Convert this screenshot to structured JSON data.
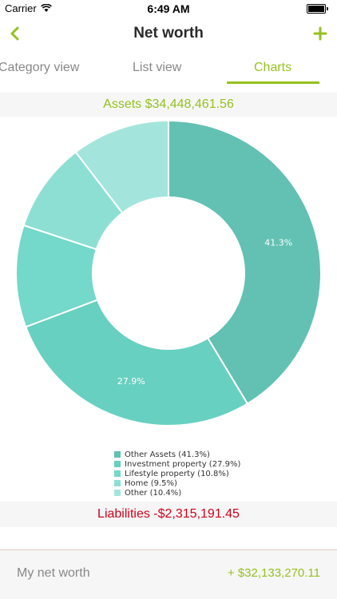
{
  "status": {
    "carrier": "Carrier",
    "time": "6:49 AM"
  },
  "nav": {
    "title": "Net worth"
  },
  "tabs": [
    {
      "label": "Category view",
      "active": false
    },
    {
      "label": "List view",
      "active": false
    },
    {
      "label": "Charts",
      "active": true
    }
  ],
  "assets_label": "Assets $34,448,461.56",
  "liabilities_label": "Liabilities -$2,315,191.45",
  "net_worth": {
    "label": "My net worth",
    "value": "+ $32,133,270.11"
  },
  "colors": {
    "accent": "#95c11f",
    "negative": "#d0021b"
  },
  "chart_data": {
    "type": "pie",
    "donut": true,
    "slices": [
      {
        "label": "Other Assets (41.3%)",
        "value": 41.3,
        "color": "#62c1b3",
        "data_label": "41.3%"
      },
      {
        "label": "Investment property (27.9%)",
        "value": 27.9,
        "color": "#68d0c1",
        "data_label": "27.9%"
      },
      {
        "label": "Lifestyle property (10.8%)",
        "value": 10.8,
        "color": "#74d8ca",
        "data_label": ""
      },
      {
        "label": "Home (9.5%)",
        "value": 9.5,
        "color": "#8ddfd4",
        "data_label": ""
      },
      {
        "label": "Other (10.4%)",
        "value": 10.4,
        "color": "#a3e5dc",
        "data_label": ""
      }
    ]
  }
}
